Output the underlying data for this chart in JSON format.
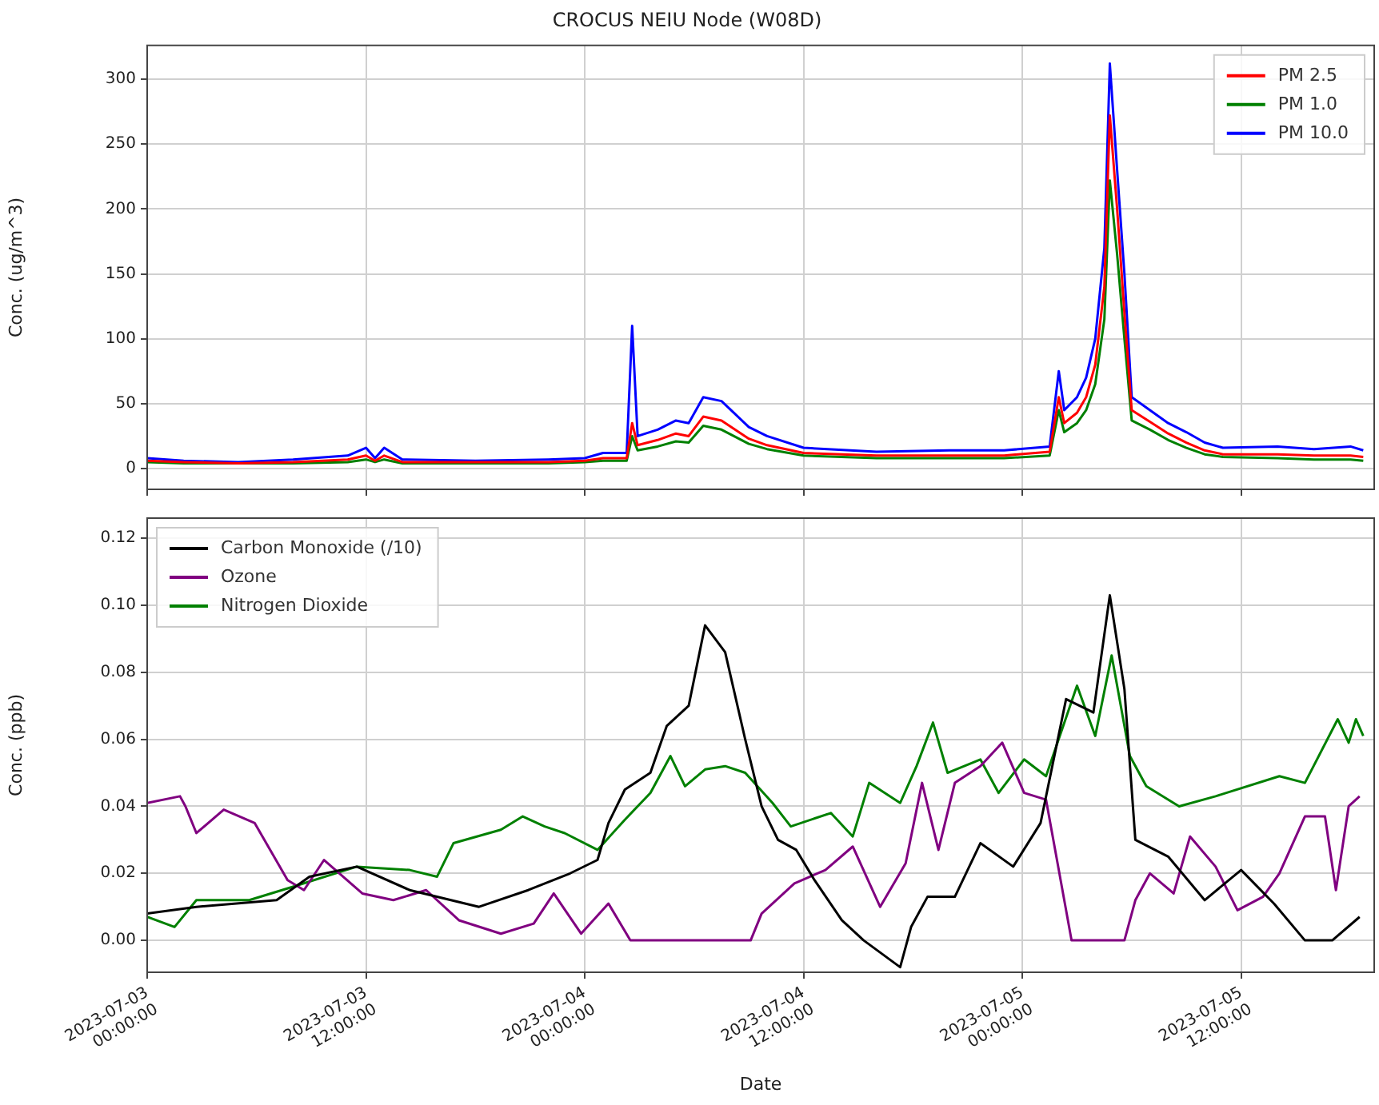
{
  "chart_data": [
    {
      "type": "line",
      "title": "CROCUS NEIU Node (W08D)",
      "ylabel": "Conc. (ug/m^3)",
      "xlim": [
        "2023-07-03T00:00",
        "2023-07-05T19:18"
      ],
      "ylim": [
        -16,
        326
      ],
      "xticks": [
        {
          "value": "2023-07-03T00:00",
          "label": null
        },
        {
          "value": "2023-07-03T12:00",
          "label": null
        },
        {
          "value": "2023-07-04T00:00",
          "label": null
        },
        {
          "value": "2023-07-04T12:00",
          "label": null
        },
        {
          "value": "2023-07-05T00:00",
          "label": null
        },
        {
          "value": "2023-07-05T12:00",
          "label": null
        }
      ],
      "yticks": [
        0,
        50,
        100,
        150,
        200,
        250,
        300
      ],
      "tick_labels": "y",
      "grid": true,
      "legend": "top right",
      "marker": "none",
      "line_style": "solid",
      "x": [
        "2023-07-03T00:00",
        "2023-07-03T02:00",
        "2023-07-03T05:00",
        "2023-07-03T08:00",
        "2023-07-03T11:00",
        "2023-07-03T12:00",
        "2023-07-03T12:30",
        "2023-07-03T13:00",
        "2023-07-03T14:00",
        "2023-07-03T18:00",
        "2023-07-03T22:00",
        "2023-07-04T00:00",
        "2023-07-04T01:00",
        "2023-07-04T02:18",
        "2023-07-04T02:36",
        "2023-07-04T02:54",
        "2023-07-04T04:00",
        "2023-07-04T05:00",
        "2023-07-04T05:42",
        "2023-07-04T06:30",
        "2023-07-04T07:30",
        "2023-07-04T09:00",
        "2023-07-04T10:00",
        "2023-07-04T12:00",
        "2023-07-04T16:00",
        "2023-07-04T20:00",
        "2023-07-04T23:00",
        "2023-07-05T01:30",
        "2023-07-05T02:00",
        "2023-07-05T02:18",
        "2023-07-05T03:00",
        "2023-07-05T03:30",
        "2023-07-05T04:00",
        "2023-07-05T04:30",
        "2023-07-05T04:48",
        "2023-07-05T05:12",
        "2023-07-05T05:36",
        "2023-07-05T06:00",
        "2023-07-05T07:00",
        "2023-07-05T08:00",
        "2023-07-05T09:00",
        "2023-07-05T10:00",
        "2023-07-05T11:00",
        "2023-07-05T14:00",
        "2023-07-05T16:00",
        "2023-07-05T18:00",
        "2023-07-05T18:42"
      ],
      "series": [
        {
          "name": "PM 2.5",
          "color": "#ff0000",
          "values": [
            6,
            5,
            4,
            5,
            7,
            10,
            6,
            10,
            5,
            5,
            5,
            6,
            8,
            8,
            35,
            18,
            22,
            27,
            25,
            40,
            37,
            23,
            18,
            12,
            10,
            10,
            10,
            13,
            55,
            35,
            43,
            55,
            80,
            140,
            272,
            200,
            120,
            45,
            36,
            27,
            20,
            14,
            11,
            11,
            10,
            10,
            9
          ]
        },
        {
          "name": "PM 1.0",
          "color": "#008000",
          "values": [
            5,
            4,
            4,
            4,
            5,
            7,
            5,
            7,
            4,
            4,
            4,
            5,
            6,
            6,
            25,
            14,
            17,
            21,
            20,
            33,
            30,
            19,
            15,
            10,
            8,
            8,
            8,
            10,
            45,
            28,
            35,
            45,
            65,
            115,
            222,
            165,
            100,
            37,
            30,
            22,
            16,
            11,
            9,
            8,
            7,
            7,
            6
          ]
        },
        {
          "name": "PM 10.0",
          "color": "#0000ff",
          "values": [
            8,
            6,
            5,
            7,
            10,
            16,
            8,
            16,
            7,
            6,
            7,
            8,
            12,
            12,
            110,
            25,
            30,
            37,
            35,
            55,
            52,
            32,
            25,
            16,
            13,
            14,
            14,
            17,
            75,
            45,
            55,
            70,
            100,
            170,
            312,
            230,
            150,
            55,
            45,
            35,
            28,
            20,
            16,
            17,
            15,
            17,
            14
          ]
        }
      ]
    },
    {
      "type": "line",
      "xlabel": "Date",
      "ylabel": "Conc. (ppb)",
      "xlim": [
        "2023-07-03T00:00",
        "2023-07-05T19:18"
      ],
      "ylim": [
        -0.0095,
        0.126
      ],
      "xticks": [
        {
          "value": "2023-07-03T00:00",
          "label": "2023-07-03 00:00:00"
        },
        {
          "value": "2023-07-03T12:00",
          "label": "2023-07-03 12:00:00"
        },
        {
          "value": "2023-07-04T00:00",
          "label": "2023-07-04 00:00:00"
        },
        {
          "value": "2023-07-04T12:00",
          "label": "2023-07-04 12:00:00"
        },
        {
          "value": "2023-07-05T00:00",
          "label": "2023-07-05 00:00:00"
        },
        {
          "value": "2023-07-05T12:00",
          "label": "2023-07-05 12:00:00"
        }
      ],
      "yticks": [
        {
          "value": 0,
          "label": "0.00"
        },
        {
          "value": 0.02,
          "label": "0.02"
        },
        {
          "value": 0.04,
          "label": "0.04"
        },
        {
          "value": 0.06,
          "label": "0.06"
        },
        {
          "value": 0.08,
          "label": "0.08"
        },
        {
          "value": 0.1,
          "label": "0.10"
        },
        {
          "value": 0.12,
          "label": "0.12"
        }
      ],
      "grid": true,
      "legend": "top left",
      "marker": "none",
      "line_style": "solid",
      "series": [
        {
          "name": "Carbon Monoxide (/10)",
          "color": "#000000",
          "x": [
            "2023-07-03T00:00",
            "2023-07-03T02:42",
            "2023-07-03T07:06",
            "2023-07-03T08:54",
            "2023-07-03T11:30",
            "2023-07-03T14:24",
            "2023-07-03T18:12",
            "2023-07-03T20:54",
            "2023-07-03T23:12",
            "2023-07-04T00:42",
            "2023-07-04T01:18",
            "2023-07-04T02:12",
            "2023-07-04T03:36",
            "2023-07-04T04:30",
            "2023-07-04T05:42",
            "2023-07-04T06:36",
            "2023-07-04T07:42",
            "2023-07-04T08:48",
            "2023-07-04T09:42",
            "2023-07-04T10:36",
            "2023-07-04T11:36",
            "2023-07-04T12:36",
            "2023-07-04T14:06",
            "2023-07-04T15:18",
            "2023-07-04T17:18",
            "2023-07-04T17:54",
            "2023-07-04T18:48",
            "2023-07-04T20:18",
            "2023-07-04T21:42",
            "2023-07-04T23:30",
            "2023-07-05T01:00",
            "2023-07-05T02:24",
            "2023-07-05T03:54",
            "2023-07-05T04:48",
            "2023-07-05T05:36",
            "2023-07-05T06:12",
            "2023-07-05T08:00",
            "2023-07-05T10:00",
            "2023-07-05T12:00",
            "2023-07-05T13:48",
            "2023-07-05T15:30",
            "2023-07-05T17:00",
            "2023-07-05T18:30"
          ],
          "values": [
            0.008,
            0.01,
            0.012,
            0.019,
            0.022,
            0.015,
            0.01,
            0.015,
            0.02,
            0.024,
            0.035,
            0.045,
            0.05,
            0.064,
            0.07,
            0.094,
            0.086,
            0.06,
            0.04,
            0.03,
            0.027,
            0.018,
            0.006,
            0,
            -0.008,
            0.004,
            0.013,
            0.013,
            0.029,
            0.022,
            0.035,
            0.072,
            0.068,
            0.103,
            0.075,
            0.03,
            0.025,
            0.012,
            0.021,
            0.011,
            0,
            0,
            0.007
          ]
        },
        {
          "name": "Ozone",
          "color": "#800080",
          "x": [
            "2023-07-03T00:00",
            "2023-07-03T01:48",
            "2023-07-03T02:06",
            "2023-07-03T02:42",
            "2023-07-03T04:12",
            "2023-07-03T05:54",
            "2023-07-03T07:42",
            "2023-07-03T08:36",
            "2023-07-03T09:42",
            "2023-07-03T11:48",
            "2023-07-03T13:30",
            "2023-07-03T15:18",
            "2023-07-03T17:06",
            "2023-07-03T19:24",
            "2023-07-03T21:12",
            "2023-07-03T22:18",
            "2023-07-03T23:48",
            "2023-07-04T01:18",
            "2023-07-04T02:30",
            "2023-07-04T08:18",
            "2023-07-04T09:06",
            "2023-07-04T09:42",
            "2023-07-04T11:30",
            "2023-07-04T13:12",
            "2023-07-04T14:42",
            "2023-07-04T16:12",
            "2023-07-04T17:36",
            "2023-07-04T18:30",
            "2023-07-04T19:24",
            "2023-07-04T20:18",
            "2023-07-04T21:42",
            "2023-07-04T22:54",
            "2023-07-05T00:06",
            "2023-07-05T01:18",
            "2023-07-05T02:42",
            "2023-07-05T05:36",
            "2023-07-05T06:12",
            "2023-07-05T07:00",
            "2023-07-05T08:18",
            "2023-07-05T09:12",
            "2023-07-05T10:36",
            "2023-07-05T11:48",
            "2023-07-05T13:12",
            "2023-07-05T14:06",
            "2023-07-05T15:30",
            "2023-07-05T16:36",
            "2023-07-05T17:12",
            "2023-07-05T17:54",
            "2023-07-05T18:30"
          ],
          "values": [
            0.041,
            0.043,
            0.04,
            0.032,
            0.039,
            0.035,
            0.018,
            0.015,
            0.024,
            0.014,
            0.012,
            0.015,
            0.006,
            0.002,
            0.005,
            0.014,
            0.002,
            0.011,
            0,
            0,
            0,
            0.008,
            0.017,
            0.021,
            0.028,
            0.01,
            0.023,
            0.047,
            0.027,
            0.047,
            0.052,
            0.059,
            0.044,
            0.042,
            0,
            0,
            0.012,
            0.02,
            0.014,
            0.031,
            0.022,
            0.009,
            0.013,
            0.02,
            0.037,
            0.037,
            0.015,
            0.04,
            0.043
          ]
        },
        {
          "name": "Nitrogen Dioxide",
          "color": "#008000",
          "x": [
            "2023-07-03T00:00",
            "2023-07-03T01:30",
            "2023-07-03T02:42",
            "2023-07-03T05:36",
            "2023-07-03T08:00",
            "2023-07-03T11:30",
            "2023-07-03T14:24",
            "2023-07-03T15:54",
            "2023-07-03T16:48",
            "2023-07-03T19:24",
            "2023-07-03T20:36",
            "2023-07-03T21:48",
            "2023-07-03T22:54",
            "2023-07-04T00:42",
            "2023-07-04T02:12",
            "2023-07-04T03:36",
            "2023-07-04T04:42",
            "2023-07-04T05:30",
            "2023-07-04T06:36",
            "2023-07-04T07:42",
            "2023-07-04T08:48",
            "2023-07-04T10:18",
            "2023-07-04T11:18",
            "2023-07-04T13:30",
            "2023-07-04T14:42",
            "2023-07-04T15:36",
            "2023-07-04T17:18",
            "2023-07-04T18:12",
            "2023-07-04T19:06",
            "2023-07-04T19:54",
            "2023-07-04T21:42",
            "2023-07-04T22:42",
            "2023-07-05T00:06",
            "2023-07-05T01:18",
            "2023-07-05T03:00",
            "2023-07-05T04:00",
            "2023-07-05T04:54",
            "2023-07-05T05:54",
            "2023-07-05T06:48",
            "2023-07-05T08:36",
            "2023-07-05T10:36",
            "2023-07-05T14:06",
            "2023-07-05T15:30",
            "2023-07-05T17:18",
            "2023-07-05T17:54",
            "2023-07-05T18:18",
            "2023-07-05T18:42"
          ],
          "values": [
            0.007,
            0.004,
            0.012,
            0.012,
            0.016,
            0.022,
            0.021,
            0.019,
            0.029,
            0.033,
            0.037,
            0.034,
            0.032,
            0.027,
            0.036,
            0.044,
            0.055,
            0.046,
            0.051,
            0.052,
            0.05,
            0.041,
            0.034,
            0.038,
            0.031,
            0.047,
            0.041,
            0.052,
            0.065,
            0.05,
            0.054,
            0.044,
            0.054,
            0.049,
            0.076,
            0.061,
            0.085,
            0.055,
            0.046,
            0.04,
            0.043,
            0.049,
            0.047,
            0.066,
            0.059,
            0.066,
            0.061
          ]
        }
      ]
    }
  ]
}
